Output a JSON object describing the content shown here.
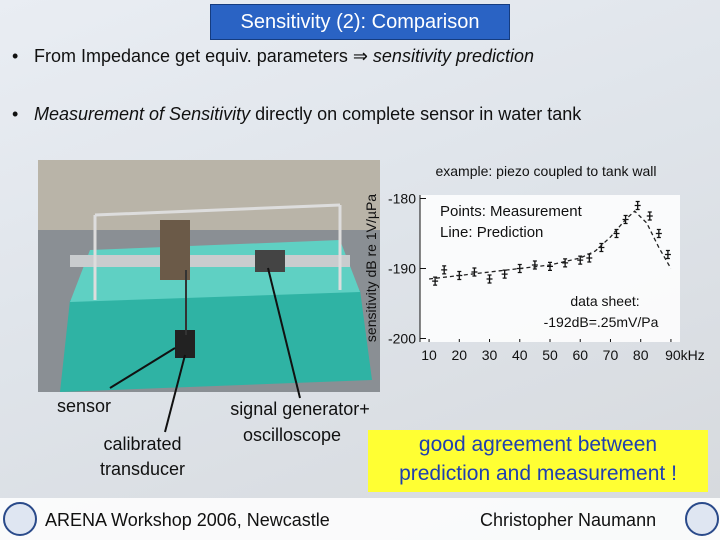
{
  "header": {
    "title": "Sensitivity (2): Comparison"
  },
  "bullets": [
    [
      "From Impedance get equiv. parameters ",
      "⇒",
      " sensitivity prediction"
    ],
    [
      "Measurement of Sensitivity",
      " directly on complete sensor in water tank"
    ]
  ],
  "photo_labels": [
    "sensor",
    "calibrated",
    "transducer",
    "signal generator+",
    "oscilloscope"
  ],
  "callout": [
    "good agreement between",
    "prediction and measurement !"
  ],
  "footer": {
    "left": "ARENA Workshop 2006, Newcastle",
    "right": "Christopher Naumann"
  },
  "chart_data": {
    "type": "line",
    "title": "example: piezo coupled to tank wall",
    "ylabel": "sensitivity dB re 1V/µPa",
    "annotations": [
      "data sheet:",
      "-192dB=.25mV/Pa"
    ],
    "xlim": [
      7,
      93
    ],
    "ylim": [
      -200.5,
      -179.5
    ],
    "xticks": [
      10,
      20,
      30,
      40,
      50,
      60,
      70,
      80,
      {
        "value": 90,
        "label": "90kHz"
      }
    ],
    "yticks": [
      -180,
      -190,
      -200
    ],
    "series": [
      {
        "name": "Points: Measurement",
        "style": "points",
        "color": "#111111",
        "x": [
          12,
          15,
          20,
          25,
          30,
          35,
          40,
          45,
          50,
          55,
          60,
          63,
          67,
          72,
          75,
          79,
          83,
          86,
          89
        ],
        "values": [
          -191.8,
          -190.2,
          -191,
          -190.5,
          -191.5,
          -190.8,
          -190,
          -189.5,
          -189.7,
          -189.2,
          -188.8,
          -188.5,
          -187,
          -185,
          -183,
          -181,
          -182.5,
          -185,
          -188
        ]
      },
      {
        "name": "Line: Prediction",
        "style": "dashed",
        "color": "#222222",
        "x": [
          10,
          20,
          30,
          40,
          50,
          60,
          65,
          70,
          75,
          78,
          82,
          86,
          90
        ],
        "values": [
          -191.5,
          -191,
          -190.5,
          -190,
          -189.5,
          -188.5,
          -187.5,
          -185.5,
          -183,
          -181.8,
          -183.5,
          -187,
          -190
        ]
      }
    ]
  }
}
